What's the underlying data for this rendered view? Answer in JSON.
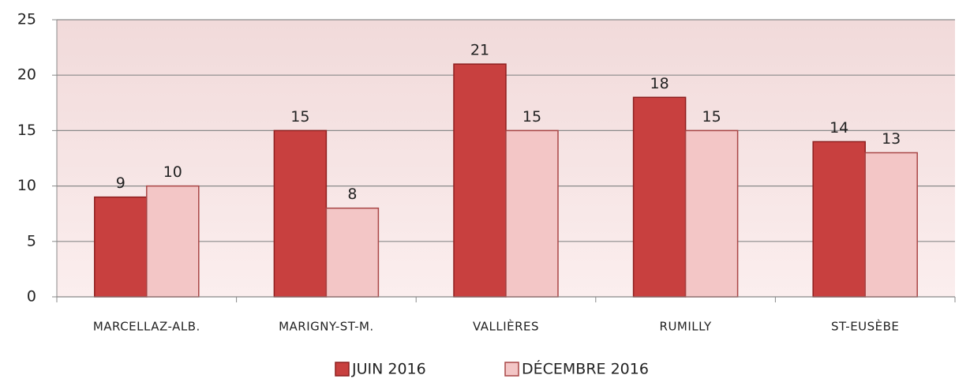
{
  "chart_data": {
    "type": "bar",
    "categories": [
      "MARCELLAZ-ALB.",
      "MARIGNY-ST-M.",
      "VALLIÈRES",
      "RUMILLY",
      "ST-EUSÈBE"
    ],
    "series": [
      {
        "name": "JUIN 2016",
        "color": "#c8403f",
        "values": [
          9,
          15,
          21,
          18,
          14
        ]
      },
      {
        "name": "DÉCEMBRE 2016",
        "color": "#f3c6c6",
        "values": [
          10,
          8,
          15,
          15,
          13
        ]
      }
    ],
    "ylim": [
      0,
      25
    ],
    "yticks": [
      0,
      5,
      10,
      15,
      20,
      25
    ],
    "grid": true,
    "legend": "bottom"
  }
}
